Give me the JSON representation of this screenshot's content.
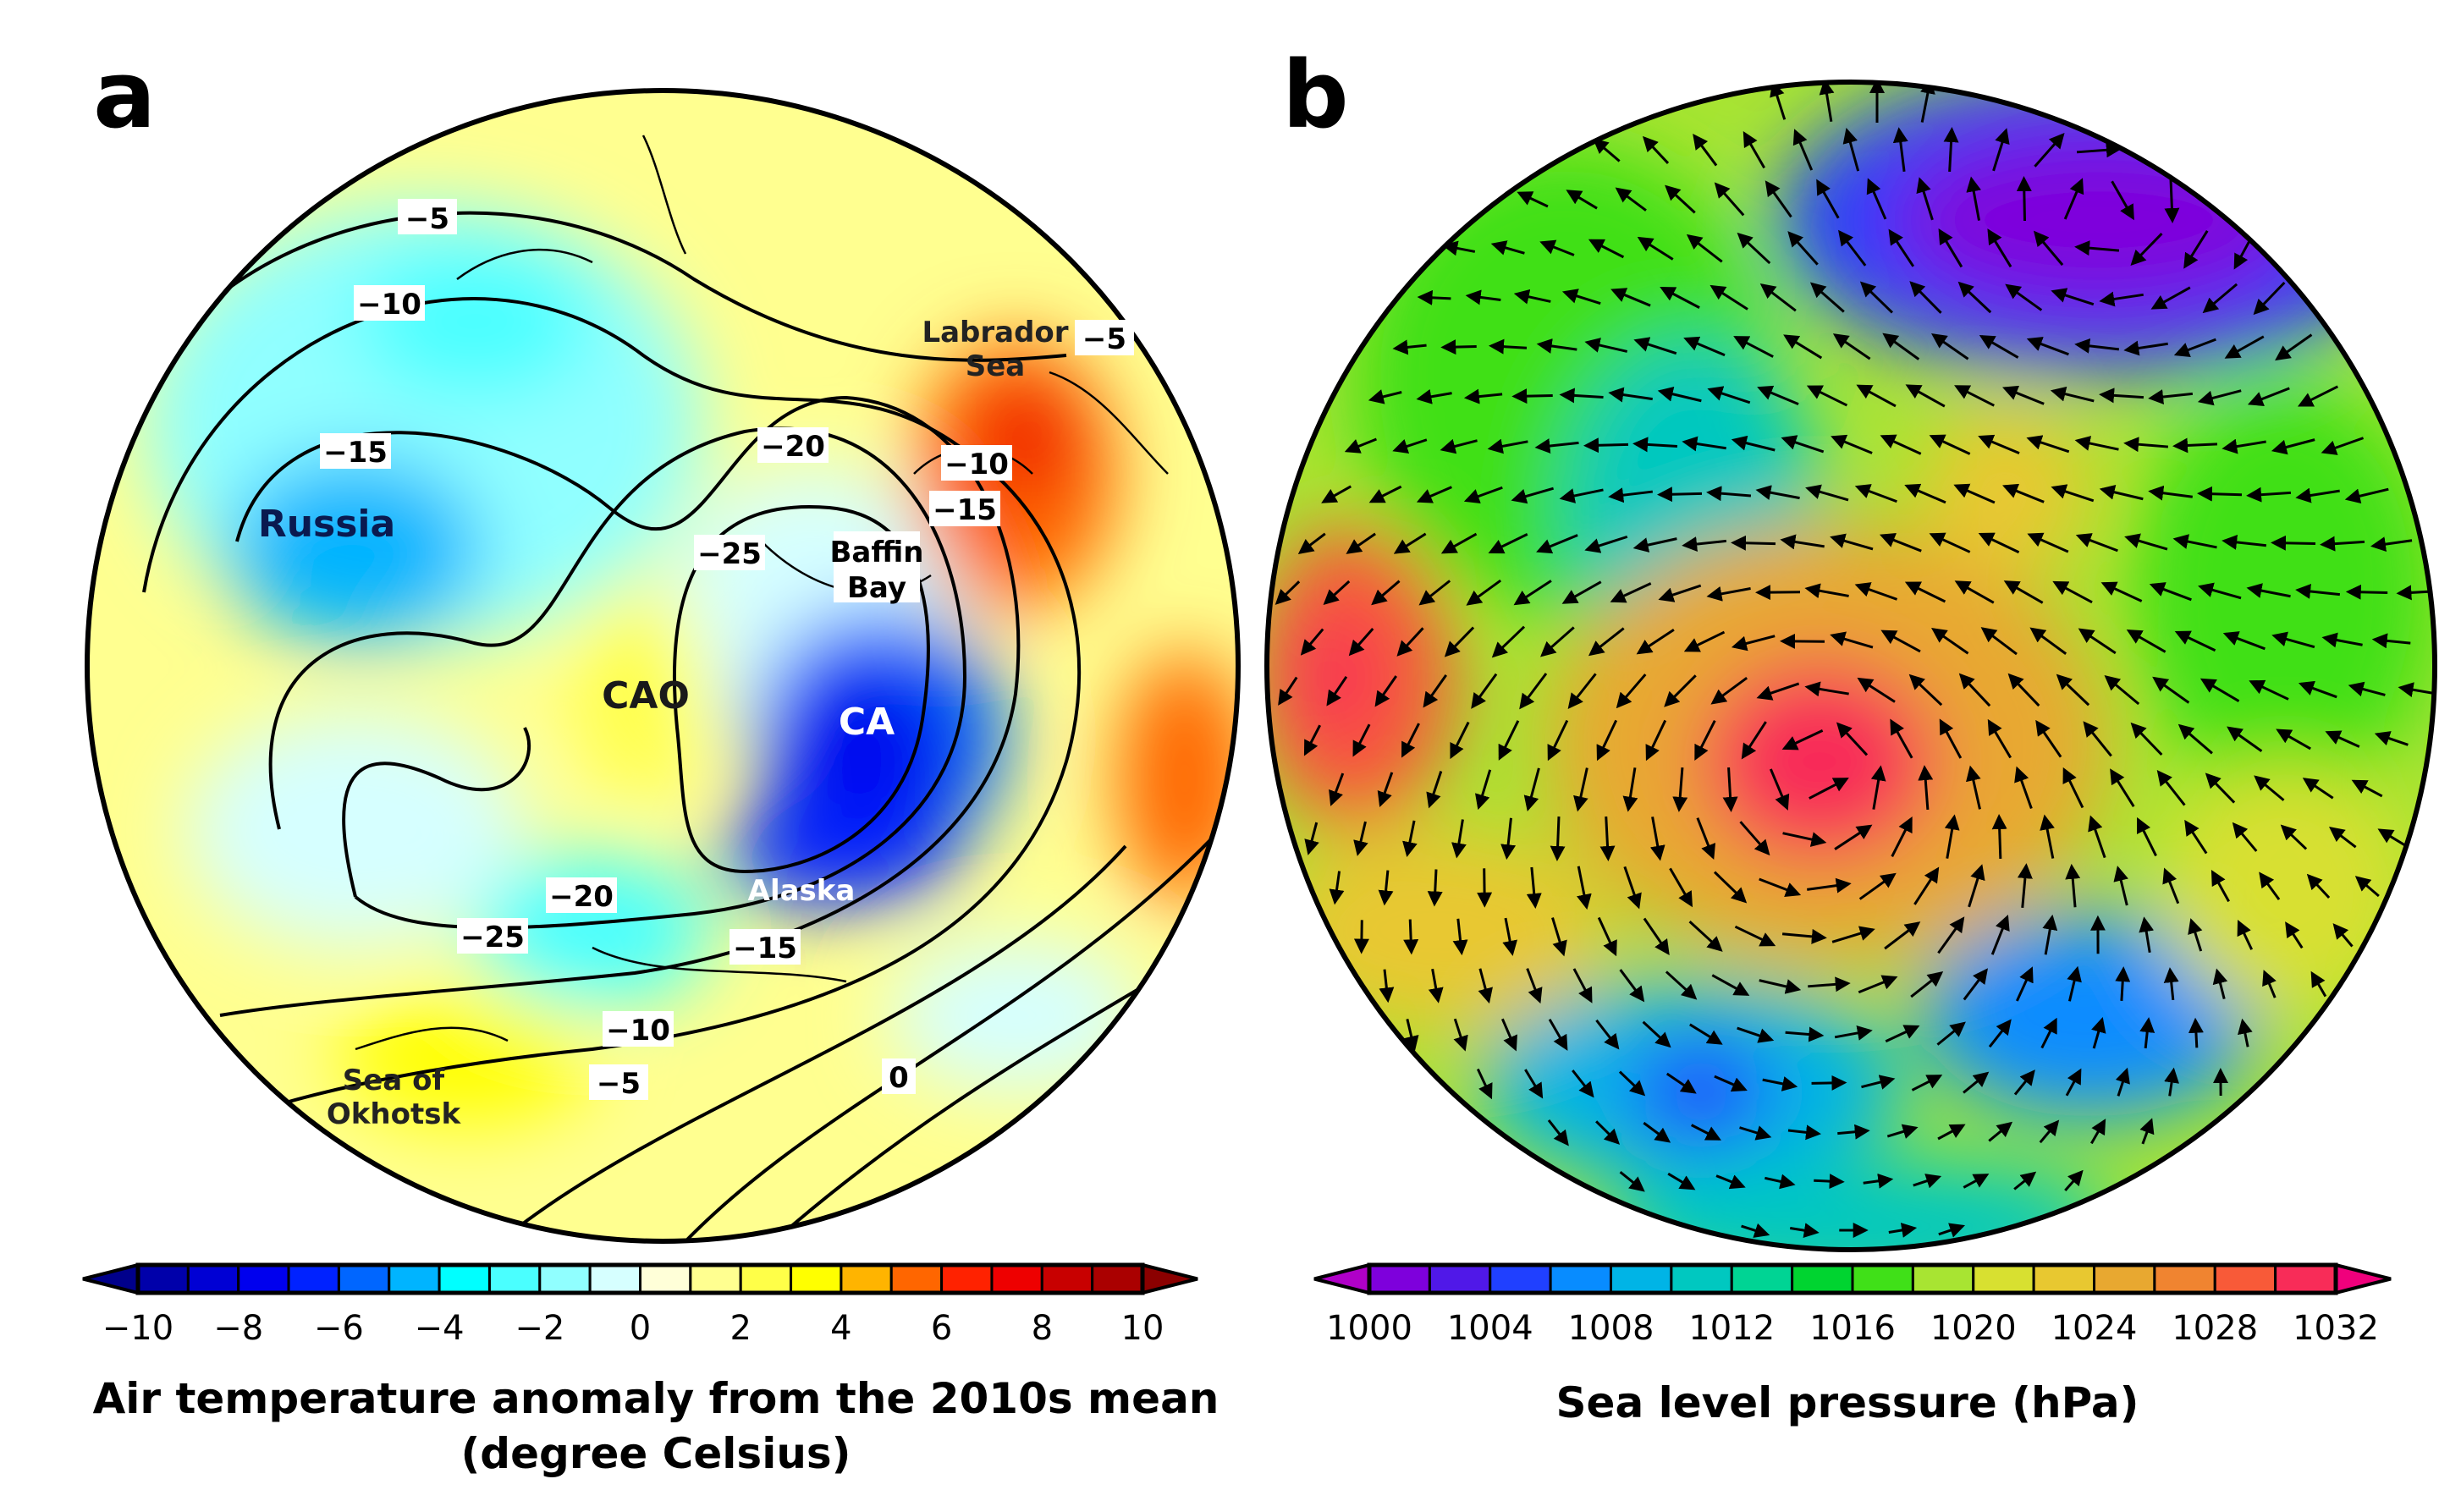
{
  "panel_a": {
    "letter": "a",
    "region_labels": {
      "russia": "Russia",
      "cao": "CAO",
      "ca": "CA",
      "alaska": "Alaska",
      "baffin_1": "Baffin",
      "baffin_2": "Bay",
      "labrador_1": "Labrador",
      "labrador_2": "Sea",
      "okhotsk_1": "Sea of",
      "okhotsk_2": "Okhotsk"
    },
    "contour_labels": [
      "−5",
      "−10",
      "−15",
      "−20",
      "−25",
      "−5",
      "−10",
      "−15",
      "−20",
      "−15",
      "−25",
      "−10",
      "−5",
      "0"
    ],
    "colorbar": {
      "colors": [
        "#0000aa",
        "#0000d4",
        "#0000ee",
        "#0022ff",
        "#0066ff",
        "#00b4ff",
        "#00ffff",
        "#4affff",
        "#90ffff",
        "#d6ffff",
        "#ffffd8",
        "#ffff90",
        "#ffff48",
        "#ffff00",
        "#ffb400",
        "#ff6600",
        "#ff2200",
        "#ee0000",
        "#c80000",
        "#aa0000"
      ],
      "under_color": "#00008b",
      "over_color": "#8b0000",
      "ticks": [
        "−10",
        "−8",
        "−6",
        "−4",
        "−2",
        "0",
        "2",
        "4",
        "6",
        "8",
        "10"
      ]
    },
    "title_1": "Air temperature anomaly from the 2010s mean",
    "title_2": "(degree Celsius)"
  },
  "panel_b": {
    "letter": "b",
    "colorbar": {
      "colors": [
        "#7e00dc",
        "#5018e8",
        "#2040ff",
        "#088cff",
        "#00b4e6",
        "#00c8c0",
        "#00d494",
        "#00d430",
        "#40e018",
        "#a8e432",
        "#d8e030",
        "#e8c830",
        "#e8a830",
        "#f08430",
        "#f85a38",
        "#f82c58"
      ],
      "under_color": "#b000c8",
      "over_color": "#f0007c",
      "ticks": [
        "1000",
        "1004",
        "1008",
        "1012",
        "1016",
        "1020",
        "1024",
        "1028",
        "1032"
      ]
    },
    "title": "Sea level pressure (hPa)"
  }
}
